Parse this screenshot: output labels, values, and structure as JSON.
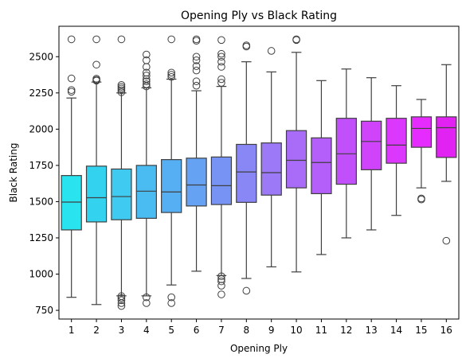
{
  "chart_data": {
    "type": "box",
    "title": "Opening Ply vs Black Rating",
    "xlabel": "Opening Ply",
    "ylabel": "Black Rating",
    "ylim": [
      690,
      2710
    ],
    "yticks": [
      750,
      1000,
      1250,
      1500,
      1750,
      2000,
      2250,
      2500
    ],
    "ytick_labels": [
      "750",
      "1000",
      "1250",
      "1500",
      "1750",
      "2000",
      "2250",
      "2500"
    ],
    "grid": false,
    "legend": "none",
    "categories": [
      "1",
      "2",
      "3",
      "4",
      "5",
      "6",
      "7",
      "8",
      "9",
      "10",
      "11",
      "12",
      "13",
      "14",
      "15",
      "16"
    ],
    "colors": [
      "#29e4ef",
      "#33d3f0",
      "#3ecaf1",
      "#4bbcf2",
      "#57aff3",
      "#66a2f4",
      "#7794f5",
      "#8987f6",
      "#9b79f7",
      "#a96cf8",
      "#b45ff9",
      "#c250fa",
      "#cf43fb",
      "#dc37fc",
      "#e52bfd",
      "#e221f3"
    ],
    "boxes": [
      {
        "min": 840,
        "q1": 1305,
        "median": 1497,
        "q3": 1680,
        "max": 2215,
        "outliers": [
          2258,
          2270,
          2350,
          2620
        ]
      },
      {
        "min": 790,
        "q1": 1360,
        "median": 1527,
        "q3": 1745,
        "max": 2325,
        "outliers": [
          2335,
          2340,
          2348,
          2445,
          2620
        ]
      },
      {
        "min": 850,
        "q1": 1375,
        "median": 1535,
        "q3": 1725,
        "max": 2250,
        "outliers": [
          780,
          800,
          820,
          835,
          848,
          2255,
          2268,
          2280,
          2292,
          2305,
          2620
        ]
      },
      {
        "min": 850,
        "q1": 1385,
        "median": 1572,
        "q3": 1750,
        "max": 2285,
        "outliers": [
          800,
          840,
          2295,
          2310,
          2330,
          2345,
          2370,
          2390,
          2430,
          2475,
          2515
        ]
      },
      {
        "min": 925,
        "q1": 1425,
        "median": 1567,
        "q3": 1790,
        "max": 2345,
        "outliers": [
          800,
          840,
          2360,
          2375,
          2390,
          2620
        ]
      },
      {
        "min": 1020,
        "q1": 1470,
        "median": 1615,
        "q3": 1800,
        "max": 2265,
        "outliers": [
          2300,
          2330,
          2405,
          2435,
          2475,
          2500,
          2610,
          2620
        ]
      },
      {
        "min": 990,
        "q1": 1480,
        "median": 1610,
        "q3": 1808,
        "max": 2295,
        "outliers": [
          860,
          920,
          950,
          965,
          985,
          2320,
          2345,
          2430,
          2465,
          2500,
          2520,
          2615
        ]
      },
      {
        "min": 970,
        "q1": 1495,
        "median": 1705,
        "q3": 1895,
        "max": 2465,
        "outliers": [
          885,
          2570,
          2578
        ]
      },
      {
        "min": 1050,
        "q1": 1545,
        "median": 1700,
        "q3": 1905,
        "max": 2395,
        "outliers": [
          2540
        ]
      },
      {
        "min": 1015,
        "q1": 1595,
        "median": 1785,
        "q3": 1990,
        "max": 2530,
        "outliers": [
          2615,
          2620
        ]
      },
      {
        "min": 1135,
        "q1": 1555,
        "median": 1770,
        "q3": 1940,
        "max": 2335,
        "outliers": []
      },
      {
        "min": 1250,
        "q1": 1620,
        "median": 1830,
        "q3": 2075,
        "max": 2415,
        "outliers": []
      },
      {
        "min": 1305,
        "q1": 1720,
        "median": 1915,
        "q3": 2055,
        "max": 2355,
        "outliers": []
      },
      {
        "min": 1405,
        "q1": 1765,
        "median": 1890,
        "q3": 2075,
        "max": 2300,
        "outliers": []
      },
      {
        "min": 1595,
        "q1": 1875,
        "median": 2005,
        "q3": 2085,
        "max": 2205,
        "outliers": [
          1515,
          1522
        ]
      },
      {
        "min": 1640,
        "q1": 1805,
        "median": 2010,
        "q3": 2085,
        "max": 2445,
        "outliers": [
          1230
        ]
      }
    ]
  }
}
